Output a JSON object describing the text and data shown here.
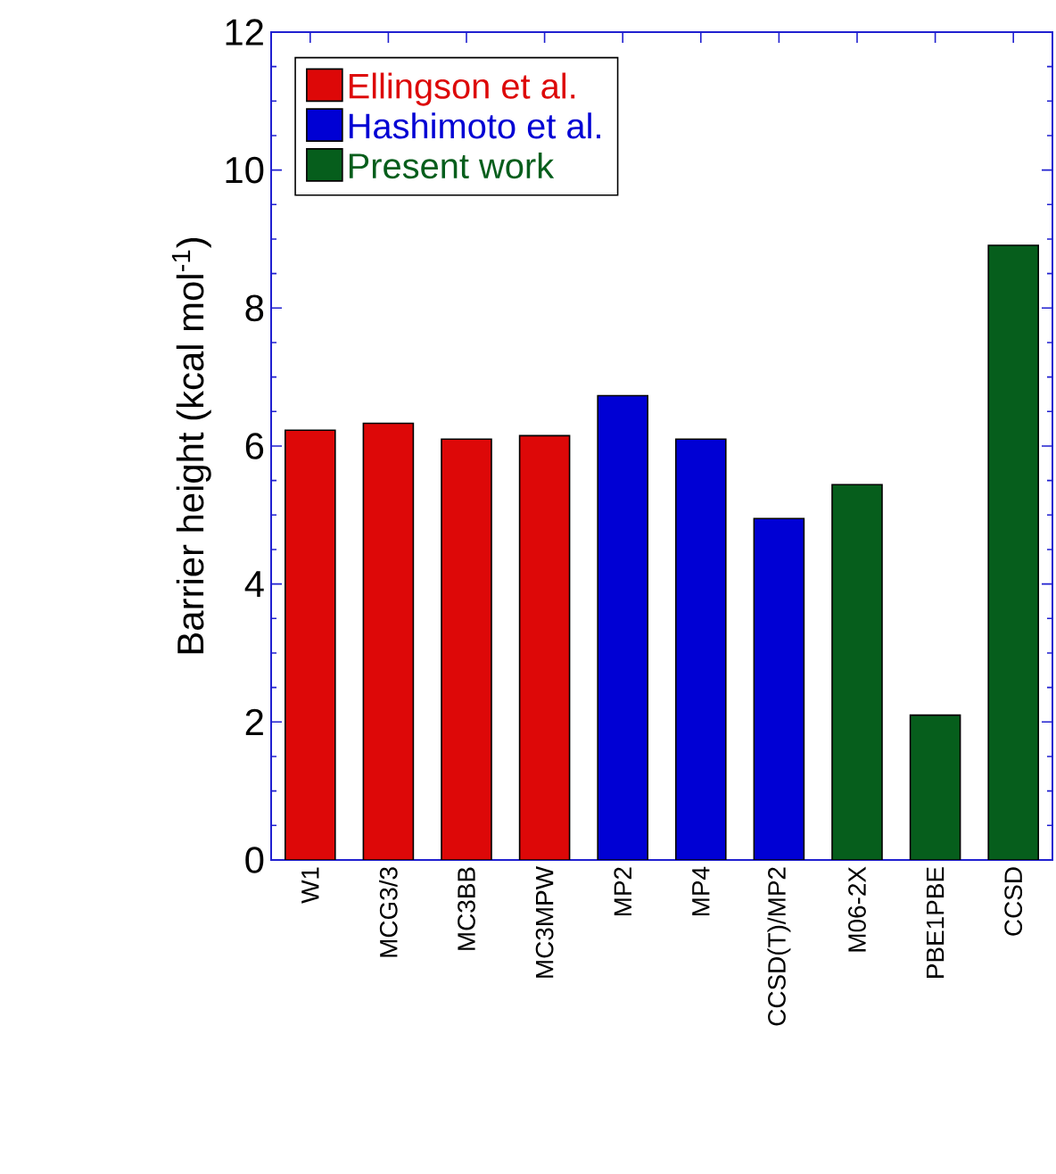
{
  "chart_data": {
    "type": "bar",
    "ylabel": "Barrier height (kcal mol$^{-1}$)",
    "categories": [
      "W1",
      "MCG3/3",
      "MC3BB",
      "MC3MPW",
      "MP2",
      "MP4",
      "CCSD(T)/MP2",
      "M06-2X",
      "PBE1PBE",
      "CCSD"
    ],
    "series": [
      {
        "name": "Ellingson et al.",
        "color": "#dd0808",
        "values": [
          6.23,
          6.33,
          6.1,
          6.15,
          null,
          null,
          null,
          null,
          null,
          null
        ]
      },
      {
        "name": "Hashimoto et al.",
        "color": "#0000d4",
        "values": [
          null,
          null,
          null,
          null,
          6.73,
          6.1,
          4.95,
          null,
          null,
          null
        ]
      },
      {
        "name": "Present work",
        "color": "#065e1c",
        "values": [
          null,
          null,
          null,
          null,
          null,
          null,
          null,
          5.44,
          2.1,
          8.91
        ]
      }
    ],
    "ylim": [
      0,
      12
    ],
    "yticks": [
      0,
      2,
      4,
      6,
      8,
      10,
      12
    ],
    "legend": "top left",
    "grid": false
  }
}
